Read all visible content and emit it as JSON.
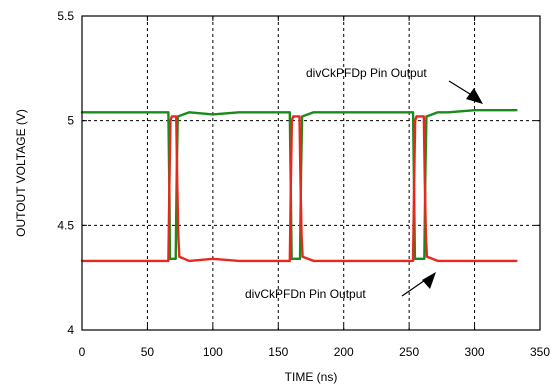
{
  "chart_data": {
    "type": "line",
    "title": "",
    "xlabel": "TIME (ns)",
    "ylabel": "OUTOUT VOLTAGE (V)",
    "xlim": [
      0,
      350
    ],
    "ylim": [
      4,
      5.5
    ],
    "x_ticks": [
      0,
      50,
      100,
      150,
      200,
      250,
      300,
      350
    ],
    "y_ticks": [
      4,
      4.5,
      5,
      5.5
    ],
    "x_tick_labels": [
      "0",
      "50",
      "100",
      "150",
      "200",
      "250",
      "300",
      "350"
    ],
    "y_tick_labels": [
      "4",
      "4.5",
      "5",
      "5.5"
    ],
    "grid": "dashed, x at 50,100,150,200,250,300 and y at 4.5,5",
    "legend": "none",
    "series": [
      {
        "name": "divCkPFDp Pin Output",
        "color": "#1a8a1a",
        "x": [
          0,
          66,
          66.8,
          67.2,
          71,
          71.6,
          72.4,
          73.2,
          82,
          100,
          120,
          140,
          158.8,
          159.6,
          160.2,
          166,
          166.6,
          167.4,
          168.2,
          177,
          200,
          220,
          240,
          253,
          253.8,
          254.4,
          261,
          261.6,
          262.4,
          263.2,
          272,
          280,
          300,
          320,
          332
        ],
        "y": [
          5.04,
          5.04,
          4.65,
          4.34,
          4.34,
          4.34,
          4.75,
          5.02,
          5.04,
          5.03,
          5.04,
          5.04,
          5.04,
          4.65,
          4.34,
          4.34,
          4.34,
          4.75,
          5.02,
          5.04,
          5.04,
          5.04,
          5.04,
          5.04,
          4.65,
          4.34,
          4.34,
          4.34,
          4.75,
          5.02,
          5.04,
          5.04,
          5.05,
          5.05,
          5.05
        ]
      },
      {
        "name": "divCkPFDn Pin Output",
        "color": "#e8281e",
        "x": [
          0,
          66,
          66.8,
          67.6,
          68.6,
          72,
          72.8,
          73.6,
          74.4,
          82,
          100,
          120,
          140,
          158.8,
          159.6,
          160.4,
          161.4,
          166.2,
          167,
          167.8,
          168.6,
          177,
          200,
          220,
          240,
          253,
          253.8,
          254.6,
          255.6,
          261.2,
          262,
          262.8,
          263.6,
          272,
          280,
          300,
          320,
          332
        ],
        "y": [
          4.33,
          4.33,
          4.7,
          5.0,
          5.02,
          5.02,
          4.7,
          4.45,
          4.35,
          4.33,
          4.34,
          4.33,
          4.33,
          4.33,
          4.7,
          5.0,
          5.02,
          5.02,
          4.7,
          4.45,
          4.35,
          4.33,
          4.33,
          4.33,
          4.33,
          4.33,
          4.7,
          5.0,
          5.02,
          5.02,
          4.7,
          4.45,
          4.35,
          4.33,
          4.33,
          4.33,
          4.33,
          4.33
        ]
      }
    ],
    "annotations": [
      {
        "text": "divCkPFDp Pin Output",
        "series": 0
      },
      {
        "text": "divCkPFDn Pin Output",
        "series": 1
      }
    ]
  }
}
